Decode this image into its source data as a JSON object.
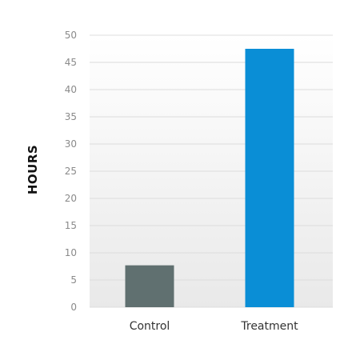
{
  "chart_data": {
    "type": "bar",
    "categories": [
      "Control",
      "Treatment"
    ],
    "values": [
      7.7,
      47.5
    ],
    "title": "",
    "xlabel": "",
    "ylabel": "HOURS",
    "ylim": [
      0,
      50
    ],
    "yticks": [
      0,
      5,
      10,
      15,
      20,
      25,
      30,
      35,
      40,
      45,
      50
    ],
    "grid": true,
    "legend": "none",
    "colors": {
      "bars": [
        "#607070",
        "#0a8ed6"
      ],
      "plot_background_top": "#ffffff",
      "plot_background_bottom": "#e9e9e9"
    }
  }
}
